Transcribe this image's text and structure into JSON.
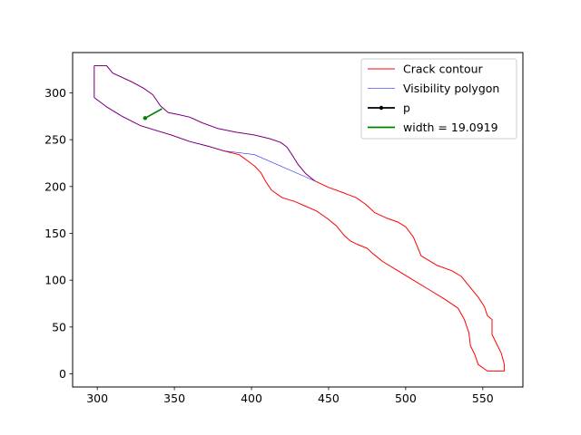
{
  "chart_data": {
    "type": "line",
    "title": "",
    "xlabel": "",
    "ylabel": "",
    "xlim": [
      284,
      576
    ],
    "ylim": [
      -14,
      343
    ],
    "xticks": [
      300,
      350,
      400,
      450,
      500,
      550
    ],
    "yticks": [
      0,
      50,
      100,
      150,
      200,
      250,
      300
    ],
    "legend_position": "upper right",
    "series": [
      {
        "name": "Crack contour",
        "color": "#ff0000",
        "points": [
          [
            298,
            329
          ],
          [
            306,
            329
          ],
          [
            310,
            321
          ],
          [
            322,
            312
          ],
          [
            330,
            305
          ],
          [
            336,
            298
          ],
          [
            341,
            286
          ],
          [
            346,
            279
          ],
          [
            352,
            277
          ],
          [
            360,
            274
          ],
          [
            368,
            268
          ],
          [
            378,
            262
          ],
          [
            390,
            258
          ],
          [
            402,
            255
          ],
          [
            412,
            251
          ],
          [
            419,
            247
          ],
          [
            423,
            242
          ],
          [
            427,
            232
          ],
          [
            430,
            224
          ],
          [
            435,
            214
          ],
          [
            441,
            206
          ],
          [
            450,
            199
          ],
          [
            460,
            193
          ],
          [
            468,
            188
          ],
          [
            474,
            181
          ],
          [
            480,
            172
          ],
          [
            488,
            166
          ],
          [
            495,
            162
          ],
          [
            500,
            157
          ],
          [
            505,
            146
          ],
          [
            510,
            126
          ],
          [
            520,
            116
          ],
          [
            530,
            110
          ],
          [
            536,
            104
          ],
          [
            542,
            92
          ],
          [
            547,
            82
          ],
          [
            551,
            72
          ],
          [
            553,
            62
          ],
          [
            556,
            58
          ],
          [
            556,
            42
          ],
          [
            559,
            32
          ],
          [
            562,
            22
          ],
          [
            564,
            10
          ],
          [
            564,
            3
          ],
          [
            553,
            3
          ],
          [
            547,
            10
          ],
          [
            545,
            20
          ],
          [
            542,
            30
          ],
          [
            541,
            44
          ],
          [
            538,
            58
          ],
          [
            534,
            70
          ],
          [
            525,
            80
          ],
          [
            515,
            90
          ],
          [
            505,
            100
          ],
          [
            495,
            110
          ],
          [
            485,
            120
          ],
          [
            479,
            128
          ],
          [
            475,
            134
          ],
          [
            469,
            138
          ],
          [
            464,
            142
          ],
          [
            460,
            148
          ],
          [
            455,
            158
          ],
          [
            449,
            166
          ],
          [
            442,
            174
          ],
          [
            435,
            179
          ],
          [
            428,
            184
          ],
          [
            420,
            188
          ],
          [
            413,
            196
          ],
          [
            409,
            206
          ],
          [
            406,
            215
          ],
          [
            402,
            222
          ],
          [
            397,
            228
          ],
          [
            392,
            234
          ],
          [
            382,
            238
          ],
          [
            372,
            243
          ],
          [
            360,
            248
          ],
          [
            348,
            255
          ],
          [
            336,
            261
          ],
          [
            328,
            265
          ],
          [
            316,
            275
          ],
          [
            306,
            285
          ],
          [
            298,
            295
          ],
          [
            298,
            329
          ]
        ]
      },
      {
        "name": "Visibility polygon",
        "color": "#0000ff",
        "points": [
          [
            298,
            329
          ],
          [
            306,
            329
          ],
          [
            310,
            321
          ],
          [
            322,
            312
          ],
          [
            330,
            305
          ],
          [
            336,
            298
          ],
          [
            341,
            286
          ],
          [
            346,
            279
          ],
          [
            352,
            277
          ],
          [
            360,
            274
          ],
          [
            368,
            268
          ],
          [
            378,
            262
          ],
          [
            390,
            258
          ],
          [
            402,
            255
          ],
          [
            412,
            251
          ],
          [
            419,
            247
          ],
          [
            423,
            242
          ],
          [
            427,
            232
          ],
          [
            430,
            224
          ],
          [
            435,
            214
          ],
          [
            441,
            206
          ],
          [
            402,
            234
          ],
          [
            397,
            235
          ],
          [
            392,
            236
          ],
          [
            382,
            238
          ],
          [
            372,
            243
          ],
          [
            360,
            248
          ],
          [
            348,
            255
          ],
          [
            336,
            261
          ],
          [
            328,
            265
          ],
          [
            316,
            275
          ],
          [
            306,
            285
          ],
          [
            298,
            295
          ],
          [
            298,
            329
          ]
        ]
      },
      {
        "name": "p",
        "color": "#000000",
        "points": [
          [
            331,
            273
          ],
          [
            342,
            283
          ]
        ]
      },
      {
        "name": "width = 19.0919",
        "color": "#008000",
        "points": [
          [
            331,
            273
          ],
          [
            342,
            283
          ]
        ]
      }
    ]
  }
}
